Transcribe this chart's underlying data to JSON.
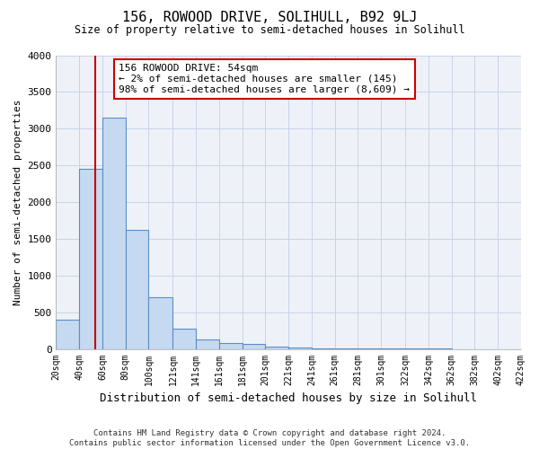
{
  "title1": "156, ROWOOD DRIVE, SOLIHULL, B92 9LJ",
  "title2": "Size of property relative to semi-detached houses in Solihull",
  "xlabel": "Distribution of semi-detached houses by size in Solihull",
  "ylabel": "Number of semi-detached properties",
  "footer1": "Contains HM Land Registry data © Crown copyright and database right 2024.",
  "footer2": "Contains public sector information licensed under the Open Government Licence v3.0.",
  "annotation_line1": "156 ROWOOD DRIVE: 54sqm",
  "annotation_line2": "← 2% of semi-detached houses are smaller (145)",
  "annotation_line3": "98% of semi-detached houses are larger (8,609) →",
  "property_size": 54,
  "bar_edges": [
    20,
    40,
    60,
    80,
    100,
    121,
    141,
    161,
    181,
    201,
    221,
    241,
    261,
    281,
    301,
    322,
    342,
    362,
    382,
    402,
    422
  ],
  "bar_heights": [
    400,
    2450,
    3150,
    1625,
    700,
    275,
    125,
    75,
    65,
    30,
    15,
    8,
    5,
    3,
    2,
    1,
    1,
    0,
    0,
    0
  ],
  "bar_color": "#c5d9f0",
  "bar_edge_color": "#5b8ec4",
  "marker_color": "#cc0000",
  "grid_color": "#c8d4e8",
  "background_color": "#ffffff",
  "plot_bg_color": "#eef2f8",
  "ylim": [
    0,
    4000
  ],
  "yticks": [
    0,
    500,
    1000,
    1500,
    2000,
    2500,
    3000,
    3500,
    4000
  ]
}
